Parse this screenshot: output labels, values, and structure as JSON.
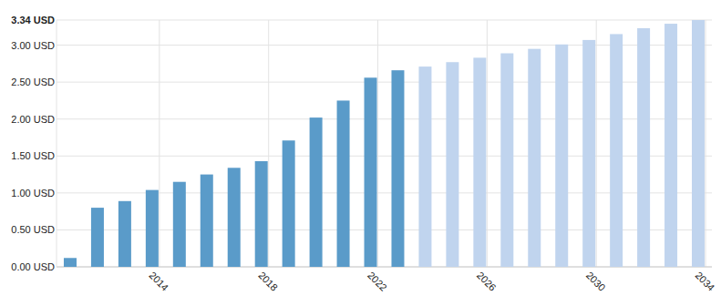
{
  "chart_data": {
    "type": "bar",
    "categories": [
      null,
      null,
      null,
      "2014",
      null,
      null,
      null,
      "2018",
      null,
      null,
      null,
      "2022",
      null,
      null,
      null,
      "2026",
      null,
      null,
      null,
      "2030",
      null,
      null,
      null,
      "2034"
    ],
    "values": [
      0.12,
      0.8,
      0.89,
      1.04,
      1.15,
      1.25,
      1.34,
      1.43,
      1.71,
      2.02,
      2.25,
      2.56,
      2.66,
      2.71,
      2.77,
      2.83,
      2.89,
      2.95,
      3.01,
      3.07,
      3.15,
      3.23,
      3.29,
      3.34
    ],
    "colors": [
      "#5a9bc9",
      "#5a9bc9",
      "#5a9bc9",
      "#5a9bc9",
      "#5a9bc9",
      "#5a9bc9",
      "#5a9bc9",
      "#5a9bc9",
      "#5a9bc9",
      "#5a9bc9",
      "#5a9bc9",
      "#5a9bc9",
      "#5a9bc9",
      "#c0d4ee",
      "#c0d4ee",
      "#c0d4ee",
      "#c0d4ee",
      "#c0d4ee",
      "#c0d4ee",
      "#c0d4ee",
      "#c0d4ee",
      "#c0d4ee",
      "#c0d4ee",
      "#c0d4ee"
    ],
    "ylim": [
      0,
      3.34
    ],
    "yticks": [
      {
        "value": 0,
        "label": "0.00 USD"
      },
      {
        "value": 0.5,
        "label": "0.50 USD"
      },
      {
        "value": 1,
        "label": "1.00 USD"
      },
      {
        "value": 1.5,
        "label": "1.50 USD"
      },
      {
        "value": 2,
        "label": "2.00 USD"
      },
      {
        "value": 2.5,
        "label": "2.50 USD"
      },
      {
        "value": 3,
        "label": "3.00 USD"
      },
      {
        "value": 3.34,
        "label": "3.34 USD"
      }
    ],
    "grid": true
  }
}
